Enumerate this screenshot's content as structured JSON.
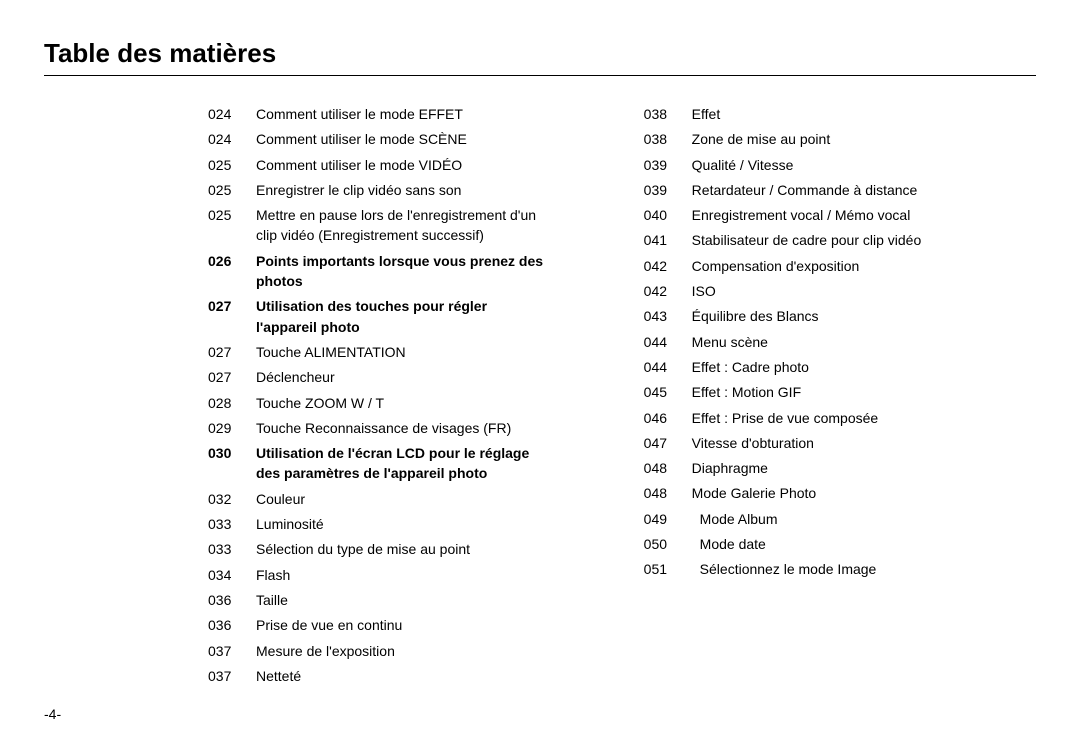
{
  "title": "Table des matières",
  "footer": "-4-",
  "leftCol": [
    {
      "num": "024",
      "text": "Comment utiliser le mode EFFET",
      "bold": false,
      "indent": false
    },
    {
      "num": "024",
      "text": "Comment utiliser le mode SCÈNE",
      "bold": false,
      "indent": false
    },
    {
      "num": "025",
      "text": "Comment utiliser le mode VIDÉO",
      "bold": false,
      "indent": false
    },
    {
      "num": "025",
      "text": "Enregistrer le clip vidéo sans son",
      "bold": false,
      "indent": false
    },
    {
      "num": "025",
      "text": "Mettre en pause lors de l'enregistrement d'un clip vidéo (Enregistrement successif)",
      "bold": false,
      "indent": false
    },
    {
      "num": "026",
      "text": "Points importants lorsque vous prenez des photos",
      "bold": true,
      "indent": false
    },
    {
      "num": "027",
      "text": "Utilisation des touches pour régler l'appareil photo",
      "bold": true,
      "indent": false
    },
    {
      "num": "027",
      "text": "Touche ALIMENTATION",
      "bold": false,
      "indent": false
    },
    {
      "num": "027",
      "text": "Déclencheur",
      "bold": false,
      "indent": false
    },
    {
      "num": "028",
      "text": "Touche ZOOM W / T",
      "bold": false,
      "indent": false
    },
    {
      "num": "029",
      "text": "Touche Reconnaissance de visages (FR)",
      "bold": false,
      "indent": false
    },
    {
      "num": "030",
      "text": "Utilisation de l'écran LCD pour le réglage des paramètres de l'appareil photo",
      "bold": true,
      "indent": false
    },
    {
      "num": "032",
      "text": "Couleur",
      "bold": false,
      "indent": false
    },
    {
      "num": "033",
      "text": "Luminosité",
      "bold": false,
      "indent": false
    },
    {
      "num": "033",
      "text": "Sélection du type de mise au point",
      "bold": false,
      "indent": false
    },
    {
      "num": "034",
      "text": "Flash",
      "bold": false,
      "indent": false
    },
    {
      "num": "036",
      "text": "Taille",
      "bold": false,
      "indent": false
    },
    {
      "num": "036",
      "text": "Prise de vue en continu",
      "bold": false,
      "indent": false
    },
    {
      "num": "037",
      "text": "Mesure de l'exposition",
      "bold": false,
      "indent": false
    },
    {
      "num": "037",
      "text": "Netteté",
      "bold": false,
      "indent": false
    }
  ],
  "rightCol": [
    {
      "num": "038",
      "text": "Effet",
      "bold": false,
      "indent": false
    },
    {
      "num": "038",
      "text": "Zone de mise au point",
      "bold": false,
      "indent": false
    },
    {
      "num": "039",
      "text": "Qualité / Vitesse",
      "bold": false,
      "indent": false
    },
    {
      "num": "039",
      "text": "Retardateur / Commande à distance",
      "bold": false,
      "indent": false
    },
    {
      "num": "040",
      "text": "Enregistrement vocal / Mémo vocal",
      "bold": false,
      "indent": false
    },
    {
      "num": "041",
      "text": "Stabilisateur de cadre pour clip vidéo",
      "bold": false,
      "indent": false
    },
    {
      "num": "042",
      "text": "Compensation d'exposition",
      "bold": false,
      "indent": false
    },
    {
      "num": "042",
      "text": "ISO",
      "bold": false,
      "indent": false
    },
    {
      "num": "043",
      "text": "Équilibre des Blancs",
      "bold": false,
      "indent": false
    },
    {
      "num": "044",
      "text": "Menu scène",
      "bold": false,
      "indent": false
    },
    {
      "num": "044",
      "text": "Effet : Cadre photo",
      "bold": false,
      "indent": false
    },
    {
      "num": "045",
      "text": "Effet : Motion GIF",
      "bold": false,
      "indent": false
    },
    {
      "num": "046",
      "text": "Effet : Prise de vue composée",
      "bold": false,
      "indent": false
    },
    {
      "num": "047",
      "text": "Vitesse d'obturation",
      "bold": false,
      "indent": false
    },
    {
      "num": "048",
      "text": "Diaphragme",
      "bold": false,
      "indent": false
    },
    {
      "num": "048",
      "text": "Mode Galerie Photo",
      "bold": false,
      "indent": false
    },
    {
      "num": "049",
      "text": "Mode Album",
      "bold": false,
      "indent": true
    },
    {
      "num": "050",
      "text": "Mode date",
      "bold": false,
      "indent": true
    },
    {
      "num": "051",
      "text": "Sélectionnez le mode Image",
      "bold": false,
      "indent": true
    }
  ]
}
